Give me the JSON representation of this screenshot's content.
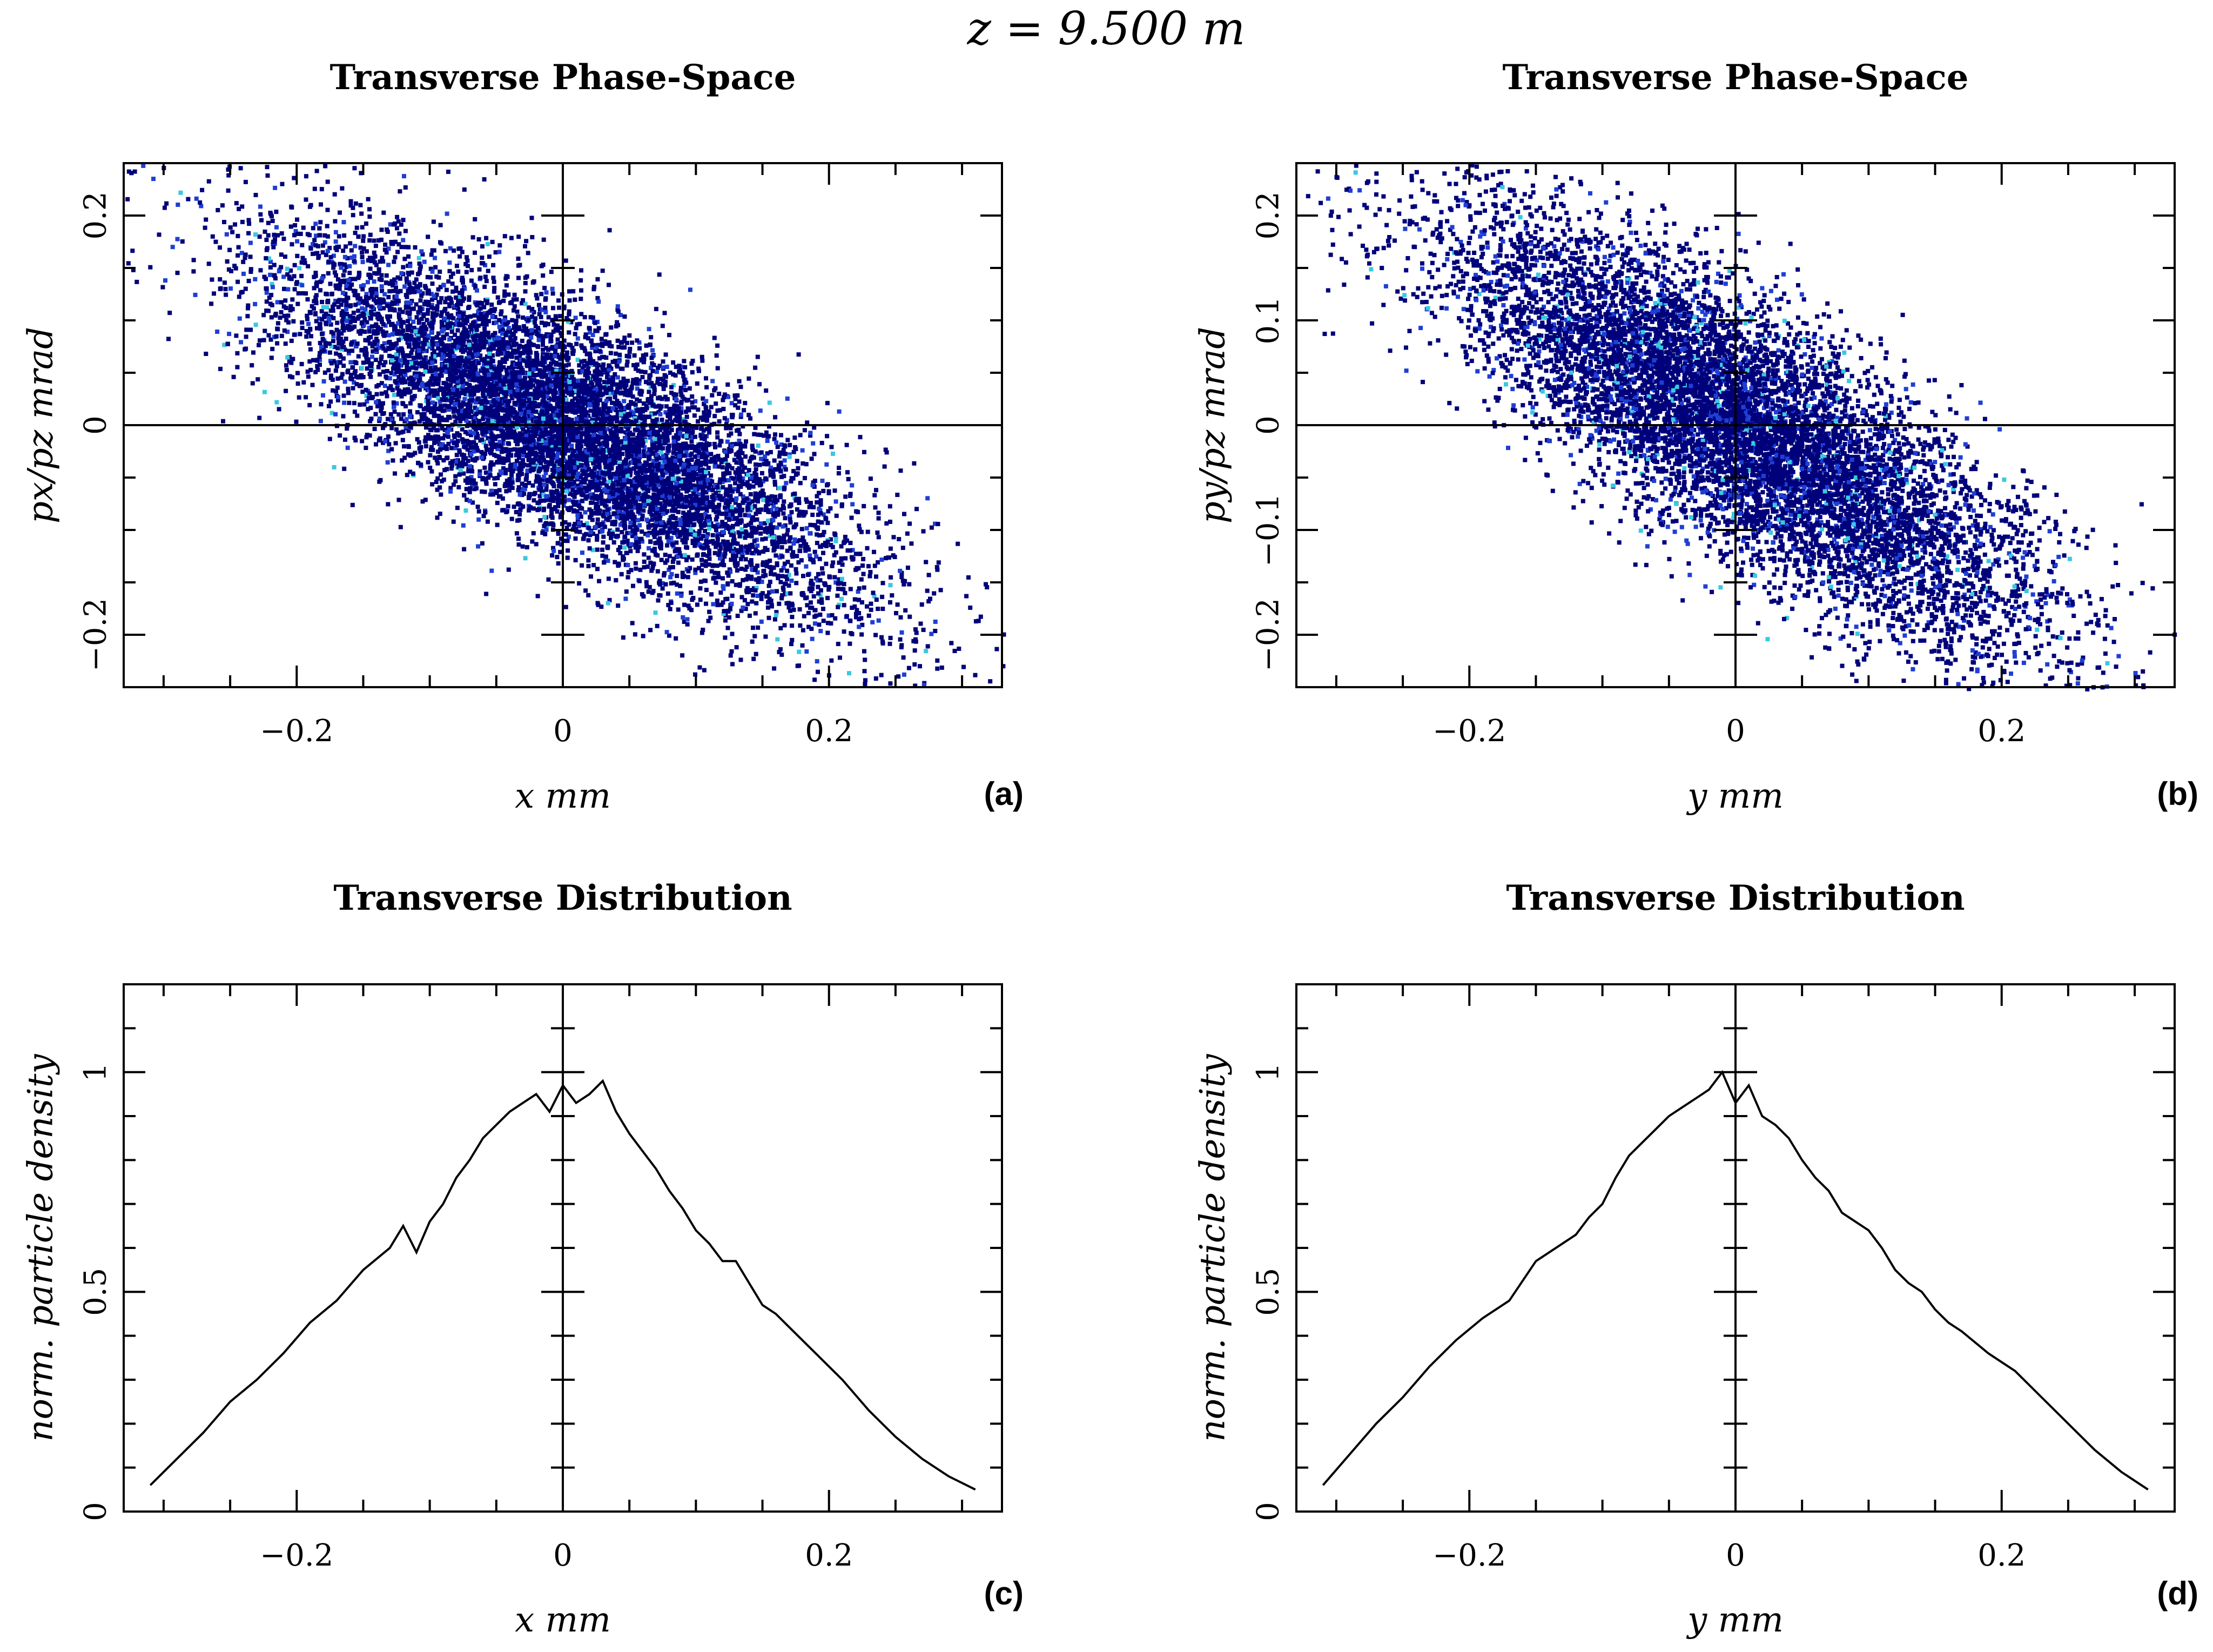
{
  "figure": {
    "main_title": "z = 9.500 m"
  },
  "chart_data": [
    {
      "id": "a",
      "type": "scatter",
      "panel_label": "(a)",
      "title": "Transverse Phase-Space",
      "xlabel": "x mm",
      "ylabel": "px/pz mrad",
      "xlim": [
        -0.33,
        0.33
      ],
      "ylim": [
        -0.25,
        0.25
      ],
      "xticks": [
        {
          "v": -0.2,
          "t": "−0.2"
        },
        {
          "v": 0,
          "t": "0"
        },
        {
          "v": 0.2,
          "t": "0.2"
        }
      ],
      "yticks": [
        {
          "v": -0.2,
          "t": "−0.2"
        },
        {
          "v": 0,
          "t": "0"
        },
        {
          "v": 0.2,
          "t": "0.2"
        }
      ],
      "distribution": {
        "n_points": 9000,
        "x_sigma": 0.11,
        "slope": -0.62,
        "spread": 0.055,
        "seed": 11
      },
      "colors": {
        "low": "#00007a",
        "mid": "#1e3fd6",
        "high": "#39c9e0"
      }
    },
    {
      "id": "b",
      "type": "scatter",
      "panel_label": "(b)",
      "title": "Transverse Phase-Space",
      "xlabel": "y mm",
      "ylabel": "py/pz mrad",
      "xlim": [
        -0.33,
        0.33
      ],
      "ylim": [
        -0.25,
        0.25
      ],
      "xticks": [
        {
          "v": -0.2,
          "t": "−0.2"
        },
        {
          "v": 0,
          "t": "0"
        },
        {
          "v": 0.2,
          "t": "0.2"
        }
      ],
      "yticks": [
        {
          "v": -0.2,
          "t": "−0.2"
        },
        {
          "v": -0.1,
          "t": "−0.1"
        },
        {
          "v": 0,
          "t": "0"
        },
        {
          "v": 0.1,
          "t": "0.1"
        },
        {
          "v": 0.2,
          "t": "0.2"
        }
      ],
      "distribution": {
        "n_points": 9000,
        "x_sigma": 0.11,
        "slope": -0.74,
        "spread": 0.06,
        "seed": 23
      },
      "colors": {
        "low": "#00007a",
        "mid": "#1e3fd6",
        "high": "#39c9e0"
      }
    },
    {
      "id": "c",
      "type": "line",
      "panel_label": "(c)",
      "title": "Transverse Distribution",
      "xlabel": "x mm",
      "ylabel": "norm. particle density",
      "xlim": [
        -0.33,
        0.33
      ],
      "ylim": [
        0,
        1.2
      ],
      "xticks": [
        {
          "v": -0.2,
          "t": "−0.2"
        },
        {
          "v": 0,
          "t": "0"
        },
        {
          "v": 0.2,
          "t": "0.2"
        }
      ],
      "yticks": [
        {
          "v": 0,
          "t": "0"
        },
        {
          "v": 0.5,
          "t": "0.5"
        },
        {
          "v": 1,
          "t": "1"
        }
      ],
      "x": [
        -0.31,
        -0.29,
        -0.27,
        -0.25,
        -0.23,
        -0.21,
        -0.19,
        -0.17,
        -0.15,
        -0.13,
        -0.12,
        -0.11,
        -0.1,
        -0.09,
        -0.08,
        -0.07,
        -0.06,
        -0.05,
        -0.04,
        -0.03,
        -0.02,
        -0.01,
        0.0,
        0.01,
        0.02,
        0.03,
        0.04,
        0.05,
        0.06,
        0.07,
        0.08,
        0.09,
        0.1,
        0.11,
        0.12,
        0.13,
        0.14,
        0.15,
        0.16,
        0.17,
        0.19,
        0.21,
        0.23,
        0.25,
        0.27,
        0.29,
        0.31
      ],
      "y": [
        0.06,
        0.12,
        0.18,
        0.25,
        0.3,
        0.36,
        0.43,
        0.48,
        0.55,
        0.6,
        0.65,
        0.59,
        0.66,
        0.7,
        0.76,
        0.8,
        0.85,
        0.88,
        0.91,
        0.93,
        0.95,
        0.91,
        0.97,
        0.93,
        0.95,
        0.98,
        0.91,
        0.86,
        0.82,
        0.78,
        0.73,
        0.69,
        0.64,
        0.61,
        0.57,
        0.57,
        0.52,
        0.47,
        0.45,
        0.42,
        0.36,
        0.3,
        0.23,
        0.17,
        0.12,
        0.08,
        0.05
      ]
    },
    {
      "id": "d",
      "type": "line",
      "panel_label": "(d)",
      "title": "Transverse Distribution",
      "xlabel": "y mm",
      "ylabel": "norm. particle density",
      "xlim": [
        -0.33,
        0.33
      ],
      "ylim": [
        0,
        1.2
      ],
      "xticks": [
        {
          "v": -0.2,
          "t": "−0.2"
        },
        {
          "v": 0,
          "t": "0"
        },
        {
          "v": 0.2,
          "t": "0.2"
        }
      ],
      "yticks": [
        {
          "v": 0,
          "t": "0"
        },
        {
          "v": 0.5,
          "t": "0.5"
        },
        {
          "v": 1,
          "t": "1"
        }
      ],
      "x": [
        -0.31,
        -0.29,
        -0.27,
        -0.25,
        -0.23,
        -0.21,
        -0.19,
        -0.17,
        -0.15,
        -0.13,
        -0.12,
        -0.11,
        -0.1,
        -0.09,
        -0.08,
        -0.07,
        -0.06,
        -0.05,
        -0.04,
        -0.03,
        -0.02,
        -0.01,
        0.0,
        0.01,
        0.02,
        0.03,
        0.04,
        0.05,
        0.06,
        0.07,
        0.08,
        0.09,
        0.1,
        0.11,
        0.12,
        0.13,
        0.14,
        0.15,
        0.16,
        0.17,
        0.19,
        0.21,
        0.23,
        0.25,
        0.27,
        0.29,
        0.31
      ],
      "y": [
        0.06,
        0.13,
        0.2,
        0.26,
        0.33,
        0.39,
        0.44,
        0.48,
        0.57,
        0.61,
        0.63,
        0.67,
        0.7,
        0.76,
        0.81,
        0.84,
        0.87,
        0.9,
        0.92,
        0.94,
        0.96,
        1.0,
        0.93,
        0.97,
        0.9,
        0.88,
        0.85,
        0.8,
        0.76,
        0.73,
        0.68,
        0.66,
        0.64,
        0.6,
        0.55,
        0.52,
        0.5,
        0.46,
        0.43,
        0.41,
        0.36,
        0.32,
        0.26,
        0.2,
        0.14,
        0.09,
        0.05
      ]
    }
  ]
}
